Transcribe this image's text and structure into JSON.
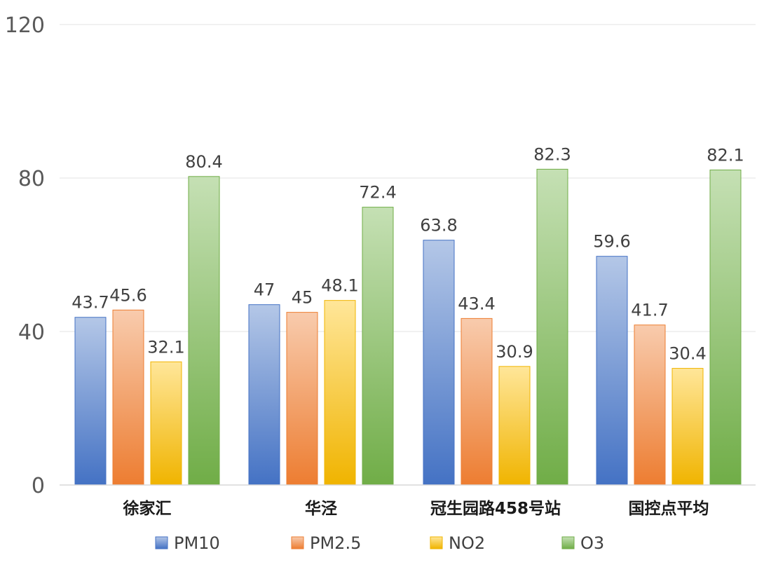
{
  "chart_data": {
    "type": "bar",
    "categories": [
      "徐家汇",
      "华泾",
      "冠生园路458号站",
      "国控点平均"
    ],
    "series": [
      {
        "name": "PM10",
        "values": [
          43.7,
          47,
          63.8,
          59.6
        ],
        "color": "#4472c4",
        "color_light": "#b4c7e7"
      },
      {
        "name": "PM2.5",
        "values": [
          45.6,
          45,
          43.4,
          41.7
        ],
        "color": "#ed7d31",
        "color_light": "#f8cbad"
      },
      {
        "name": "NO2",
        "values": [
          32.1,
          48.1,
          30.9,
          30.4
        ],
        "color": "#f0b400",
        "color_light": "#ffe699"
      },
      {
        "name": "O3",
        "values": [
          80.4,
          72.4,
          82.3,
          82.1
        ],
        "color": "#70ad47",
        "color_light": "#c5e0b4"
      }
    ],
    "data_labels": [
      [
        "43.7",
        "47",
        "63.8",
        "59.6"
      ],
      [
        "45.6",
        "45",
        "43.4",
        "41.7"
      ],
      [
        "32.1",
        "48.1",
        "30.9",
        "30.4"
      ],
      [
        "80.4",
        "72.4",
        "82.3",
        "82.1"
      ]
    ],
    "y_ticks": [
      "0",
      "40",
      "80",
      "120"
    ],
    "ylim": [
      0,
      120
    ],
    "grid": true,
    "legend_position": "bottom",
    "title": "",
    "xlabel": "",
    "ylabel": ""
  }
}
